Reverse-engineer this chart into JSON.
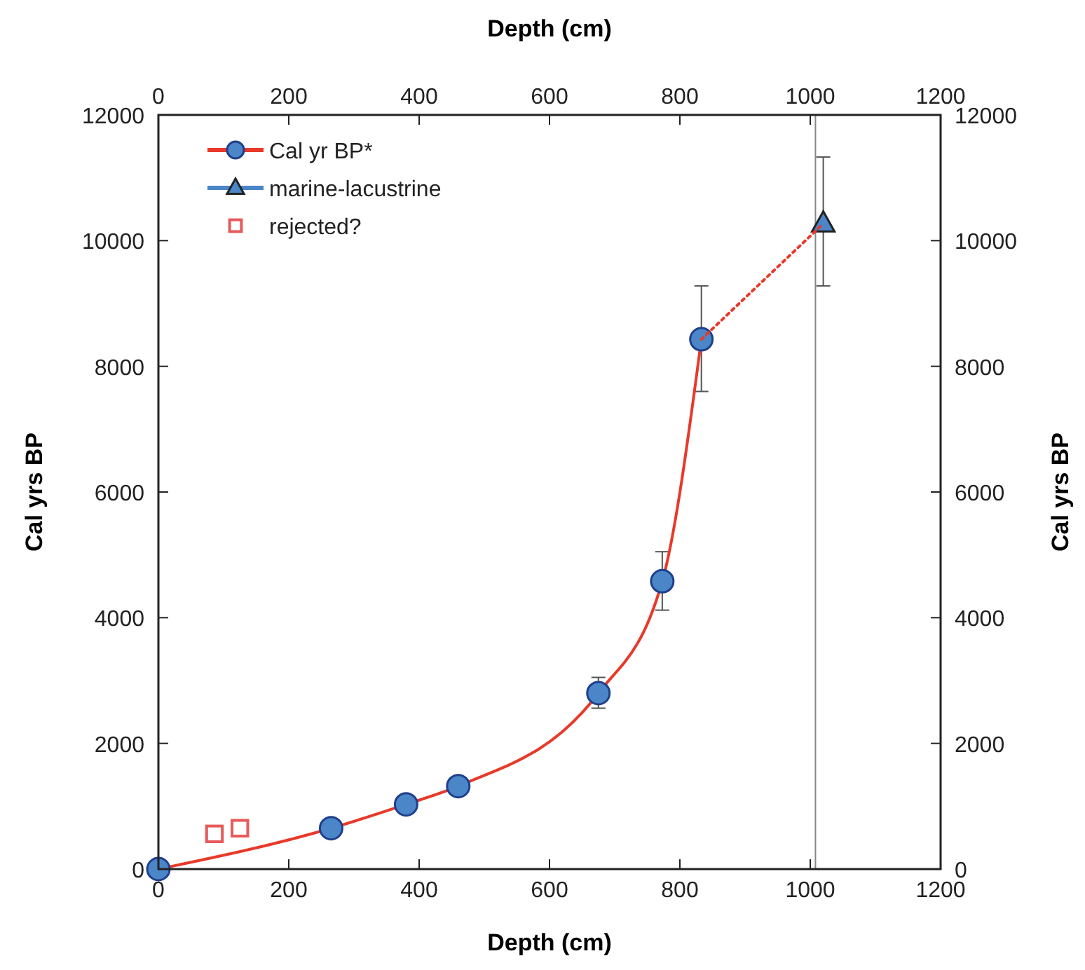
{
  "chart_data": {
    "type": "line",
    "xlabel": "Depth (cm)",
    "x2label": "Depth (cm)",
    "ylabel": "Cal yrs BP",
    "y2label": "Cal yrs BP",
    "xlim": [
      0,
      1200
    ],
    "xticks": [
      0,
      200,
      400,
      600,
      800,
      1000,
      1200
    ],
    "x2lim": [
      0,
      1200
    ],
    "x2ticks": [
      0,
      200,
      400,
      600,
      800,
      1000,
      1200
    ],
    "ylim": [
      0,
      12000
    ],
    "yticks": [
      0,
      2000,
      4000,
      6000,
      8000,
      10000,
      12000
    ],
    "y2lim": [
      0,
      12000
    ],
    "y2ticks": [
      0,
      2000,
      4000,
      6000,
      8000,
      10000,
      12000
    ],
    "series": [
      {
        "name": "Cal yr BP*",
        "color": "#e8392a",
        "colors": [
          "#4a86c8",
          "#4a86c8",
          "#4a86c8",
          "#4a86c8",
          "#4a86c8",
          "#4a86c8",
          "#4a86c8"
        ],
        "marker": "circle",
        "line_style": "solid",
        "x": [
          0,
          265,
          380,
          460,
          675,
          773,
          833
        ],
        "values": [
          0,
          650,
          1030,
          1320,
          2800,
          4580,
          8430
        ],
        "errors": [
          null,
          null,
          null,
          null,
          [
            2560,
            3050
          ],
          [
            4120,
            5050
          ],
          [
            7600,
            9280
          ]
        ]
      },
      {
        "name": "marine-lacustrine",
        "type": "scatter",
        "color": "#4a86c8",
        "marker": "triangle",
        "x": [
          1020
        ],
        "values": [
          10270
        ],
        "errors": [
          [
            9280,
            11330
          ]
        ]
      },
      {
        "name": "rejected?",
        "type": "scatter",
        "color": "#e8595a",
        "marker": "square",
        "x": [
          86,
          125
        ],
        "values": [
          560,
          650
        ]
      },
      {
        "color": "#e8392a",
        "marker": "none",
        "line_style": "dotted",
        "x": [
          833,
          1020
        ],
        "values": [
          8430,
          10270
        ]
      }
    ],
    "ref_lines": [
      {
        "axis": "x",
        "value": 1008,
        "color": "#888888",
        "line_style": "solid"
      }
    ],
    "legend": "top left",
    "grid": false
  }
}
